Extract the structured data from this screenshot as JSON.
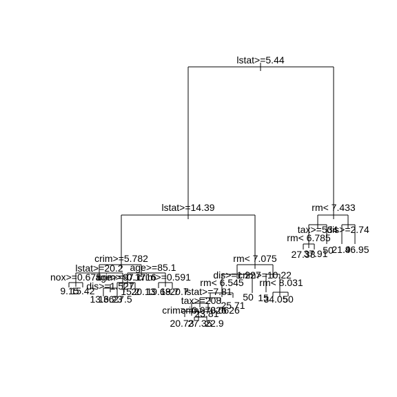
{
  "tree": {
    "nodes": [
      {
        "id": "n1",
        "split": "lstat>=5.44"
      },
      {
        "id": "n2",
        "split": "lstat>=14.39"
      },
      {
        "id": "n3",
        "split": "rm< 7.433"
      },
      {
        "id": "n4",
        "split": "crim>=5.782"
      },
      {
        "id": "n5",
        "split": "rm< 7.075"
      },
      {
        "id": "n6",
        "split": "tax>=534"
      },
      {
        "id": "n7",
        "split": "dis>=2.74"
      },
      {
        "id": "n8",
        "split": "rm< 6.785"
      },
      {
        "id": "n9",
        "split": "lstat>=20.2"
      },
      {
        "id": "n10",
        "split": "age>=85.1"
      },
      {
        "id": "n11",
        "split": "dis>=1.227"
      },
      {
        "id": "n12",
        "split": "crim>=10.22"
      },
      {
        "id": "n13",
        "split": "nox>=0.675"
      },
      {
        "id": "n14",
        "split": "age>=97.1"
      },
      {
        "id": "n15",
        "split": "crim>=0.1716"
      },
      {
        "id": "n16",
        "split": "crim>=0.591"
      },
      {
        "id": "n17",
        "split": "dis>=1.527"
      },
      {
        "id": "n18",
        "split": "rm< 6.545"
      },
      {
        "id": "n19",
        "split": "lstat>=7.81"
      },
      {
        "id": "n20",
        "split": "rm< 8.031"
      },
      {
        "id": "n21",
        "split": "tax>=208"
      },
      {
        "id": "n22",
        "split": "crim>=0.07826"
      },
      {
        "id": "n23",
        "split": "crim>=0.0626"
      }
    ],
    "leaves": [
      {
        "id": "l1",
        "value": "9.15"
      },
      {
        "id": "l2",
        "value": "15.42"
      },
      {
        "id": "l3",
        "value": "13.36"
      },
      {
        "id": "l4",
        "value": "16.23"
      },
      {
        "id": "l5",
        "value": "27.5"
      },
      {
        "id": "l6",
        "value": "15.2"
      },
      {
        "id": "l7",
        "value": "20.13"
      },
      {
        "id": "l8",
        "value": "19.68"
      },
      {
        "id": "l9",
        "value": "19.7"
      },
      {
        "id": "l10",
        "value": "20.7"
      },
      {
        "id": "l11",
        "value": "25.71"
      },
      {
        "id": "l12",
        "value": "50"
      },
      {
        "id": "l13",
        "value": "15"
      },
      {
        "id": "l14",
        "value": "34.05"
      },
      {
        "id": "l15",
        "value": "50"
      },
      {
        "id": "l16",
        "value": "20.73"
      },
      {
        "id": "l17",
        "value": "27.35"
      },
      {
        "id": "l18",
        "value": "22.9"
      },
      {
        "id": "l19",
        "value": "23.81"
      },
      {
        "id": "l20",
        "value": "27.38"
      },
      {
        "id": "l21",
        "value": "37.91"
      },
      {
        "id": "l22",
        "value": "50"
      },
      {
        "id": "l23",
        "value": "21.9"
      },
      {
        "id": "l24",
        "value": "46.95"
      }
    ]
  }
}
